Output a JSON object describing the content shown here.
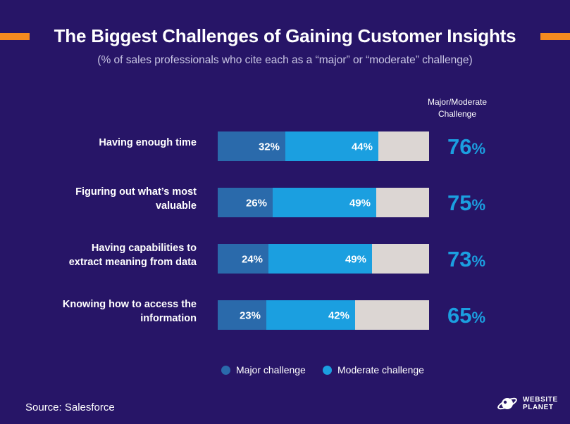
{
  "header": {
    "title": "The Biggest Challenges of Gaining Customer Insights",
    "subtitle": "(% of sales professionals who cite each as a “major” or “moderate” challenge)",
    "column_header_line1": "Major/Moderate",
    "column_header_line2": "Challenge"
  },
  "legend": {
    "major_label": "Major challenge",
    "moderate_label": "Moderate challenge"
  },
  "footer": {
    "source": "Source: Salesforce",
    "logo_line1": "WEBSITE",
    "logo_line2": "PLANET"
  },
  "colors": {
    "background": "#271567",
    "major": "#2a6aab",
    "moderate": "#1b9fe0",
    "remainder": "#dcd6d3",
    "total_text": "#1b9fe0",
    "accent": "#f58a1f"
  },
  "chart_data": {
    "type": "bar",
    "orientation": "horizontal",
    "stacked": true,
    "categories": [
      [
        "Having enough time"
      ],
      [
        "Figuring out what’s most",
        "valuable"
      ],
      [
        "Having capabilities to",
        "extract meaning from data"
      ],
      [
        "Knowing how to access the",
        "information"
      ]
    ],
    "series": [
      {
        "name": "Major challenge",
        "values": [
          32,
          26,
          24,
          23
        ]
      },
      {
        "name": "Moderate challenge",
        "values": [
          44,
          49,
          49,
          42
        ]
      }
    ],
    "totals": [
      76,
      75,
      73,
      65
    ],
    "value_suffix": "%",
    "xlim": [
      0,
      100
    ],
    "legend_position": "bottom"
  }
}
